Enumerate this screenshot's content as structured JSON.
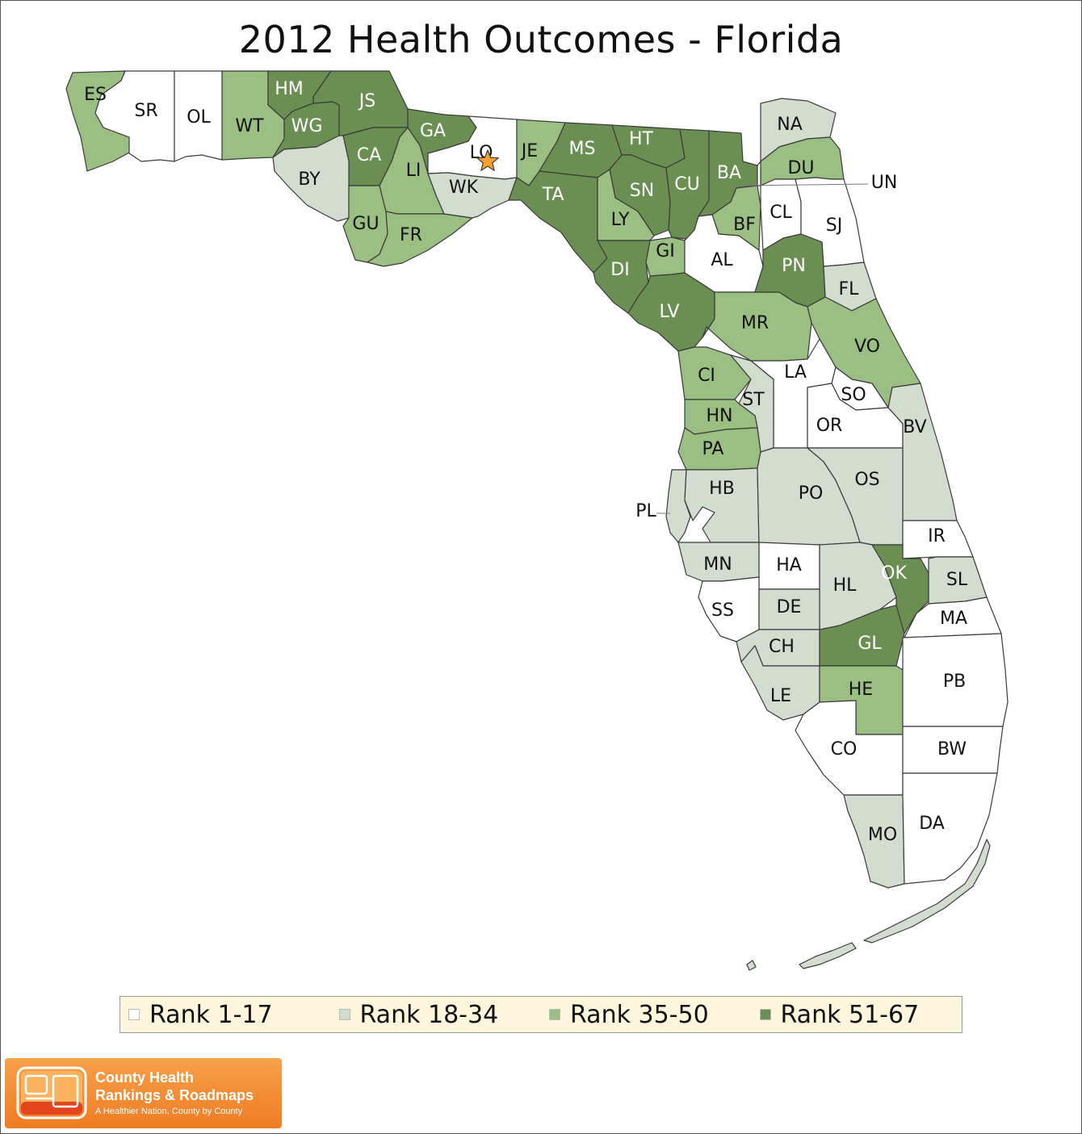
{
  "title": "2012 Health Outcomes - Florida",
  "colors": {
    "rank_1_17": "#ffffff",
    "rank_18_34": "#d2ddd0",
    "rank_35_50": "#9bbf82",
    "rank_51_67": "#6b8f52",
    "border": "#3a3a3a",
    "legend_bg": "#fdf6dc",
    "marker": "#f7a133"
  },
  "legend": [
    {
      "label": "Rank 1-17",
      "bin": "rank_1_17"
    },
    {
      "label": "Rank 18-34",
      "bin": "rank_18_34"
    },
    {
      "label": "Rank 35-50",
      "bin": "rank_35_50"
    },
    {
      "label": "Rank 51-67",
      "bin": "rank_51_67"
    }
  ],
  "counties": {
    "ES": "rank_35_50",
    "SR": "rank_1_17",
    "OL": "rank_1_17",
    "WT": "rank_35_50",
    "HM": "rank_51_67",
    "WG": "rank_51_67",
    "JS": "rank_51_67",
    "CA": "rank_51_67",
    "BY": "rank_18_34",
    "GU": "rank_35_50",
    "LI": "rank_35_50",
    "GA": "rank_51_67",
    "FR": "rank_35_50",
    "LO": "rank_1_17",
    "WK": "rank_18_34",
    "JE": "rank_35_50",
    "TA": "rank_51_67",
    "MS": "rank_51_67",
    "HT": "rank_51_67",
    "SN": "rank_51_67",
    "LY": "rank_35_50",
    "DI": "rank_51_67",
    "GI": "rank_35_50",
    "CU": "rank_51_67",
    "LV": "rank_51_67",
    "BA": "rank_51_67",
    "BF": "rank_35_50",
    "NA": "rank_18_34",
    "DU": "rank_35_50",
    "UN": "rank_1_17",
    "CL": "rank_1_17",
    "SJ": "rank_1_17",
    "AL": "rank_1_17",
    "PN": "rank_51_67",
    "FL": "rank_18_34",
    "MR": "rank_35_50",
    "VO": "rank_35_50",
    "CI": "rank_35_50",
    "LA": "rank_1_17",
    "ST": "rank_18_34",
    "SO": "rank_1_17",
    "HN": "rank_35_50",
    "OR": "rank_1_17",
    "BV": "rank_18_34",
    "PA": "rank_35_50",
    "PL": "rank_18_34",
    "HB": "rank_18_34",
    "PO": "rank_18_34",
    "OS": "rank_18_34",
    "IR": "rank_1_17",
    "MN": "rank_18_34",
    "HA": "rank_1_17",
    "HL": "rank_18_34",
    "OK": "rank_51_67",
    "SL": "rank_18_34",
    "SS": "rank_1_17",
    "DE": "rank_18_34",
    "MA": "rank_1_17",
    "CH": "rank_18_34",
    "GL": "rank_51_67",
    "LE": "rank_18_34",
    "HE": "rank_35_50",
    "PB": "rank_1_17",
    "CO": "rank_1_17",
    "BW": "rank_1_17",
    "MO": "rank_18_34",
    "DA": "rank_1_17"
  },
  "marker": {
    "county": "LO",
    "icon": "star-icon"
  },
  "logo": {
    "line1": "County Health",
    "line2": "Rankings & Roadmaps",
    "tagline": "A Healthier Nation, County by County"
  }
}
